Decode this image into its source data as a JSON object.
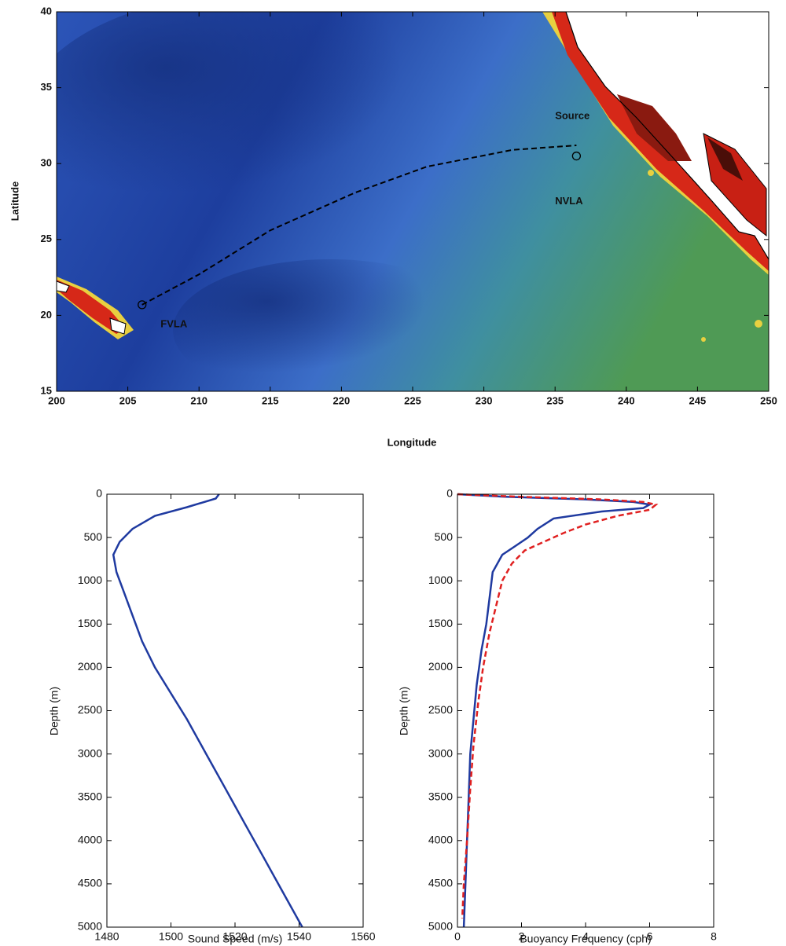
{
  "chart_data": [
    {
      "type": "map",
      "xlabel": "Longitude",
      "ylabel": "Latitude",
      "xlim": [
        200,
        250
      ],
      "ylim": [
        15,
        40
      ],
      "xticks": [
        200,
        205,
        210,
        215,
        220,
        225,
        230,
        235,
        240,
        245,
        250
      ],
      "yticks": [
        15,
        20,
        25,
        30,
        35,
        40
      ],
      "series": [
        {
          "x": [
            206,
            210,
            215,
            221,
            226,
            232,
            236.5
          ],
          "y": [
            20.7,
            22.7,
            25.6,
            28.1,
            29.8,
            30.9,
            31.2
          ],
          "color": "#000000",
          "dash": true
        }
      ],
      "markers": {
        "x": [
          206,
          236.5
        ],
        "y": [
          20.7,
          30.5
        ]
      },
      "annotations": [
        {
          "text": "Source",
          "x": 235,
          "y": 33.1
        },
        {
          "text": "NVLA",
          "x": 235,
          "y": 27.5
        },
        {
          "text": "FVLA",
          "x": 207.3,
          "y": 19.4
        }
      ]
    },
    {
      "type": "profile",
      "xlabel": "Sound Speed (m/s)",
      "ylabel": "Depth (m)",
      "xlim": [
        1480,
        1560
      ],
      "ylim": [
        0,
        5000
      ],
      "y_reversed": true,
      "xticks": [
        1480,
        1500,
        1520,
        1540,
        1560
      ],
      "yticks": [
        0,
        500,
        1000,
        1500,
        2000,
        2500,
        3000,
        3500,
        4000,
        4500,
        5000
      ],
      "series": [
        {
          "color": "#1f3aa0",
          "dash": false,
          "x": [
            1515,
            1514,
            1505,
            1495,
            1488,
            1484,
            1482,
            1483,
            1485,
            1488,
            1491,
            1495,
            1500,
            1505,
            1511,
            1517,
            1523,
            1529,
            1535,
            1541
          ],
          "y": [
            0,
            50,
            150,
            250,
            400,
            550,
            700,
            900,
            1100,
            1400,
            1700,
            2000,
            2300,
            2600,
            3000,
            3400,
            3800,
            4200,
            4600,
            5000
          ]
        }
      ]
    },
    {
      "type": "profile",
      "xlabel": "Buoyancy Frequency (cph)",
      "ylabel": "Depth (m)",
      "xlim": [
        0,
        8
      ],
      "ylim": [
        0,
        5000
      ],
      "y_reversed": true,
      "xticks": [
        0,
        2,
        4,
        6,
        8
      ],
      "yticks": [
        0,
        500,
        1000,
        1500,
        2000,
        2500,
        3000,
        3500,
        4000,
        4500,
        5000
      ],
      "series": [
        {
          "color": "#1f3aa0",
          "dash": false,
          "x": [
            0,
            1.5,
            4,
            5.5,
            6,
            5.8,
            4.5,
            3,
            2.5,
            2.2,
            1.8,
            1.4,
            1.1,
            1.0,
            0.9,
            0.75,
            0.6,
            0.5,
            0.4,
            0.35,
            0.3,
            0.25,
            0.2
          ],
          "y": [
            0,
            30,
            60,
            90,
            120,
            160,
            200,
            280,
            400,
            500,
            600,
            700,
            900,
            1200,
            1500,
            1800,
            2200,
            2600,
            3000,
            3500,
            4000,
            4500,
            5000
          ]
        },
        {
          "color": "#e02020",
          "dash": true,
          "x": [
            0,
            2,
            4.5,
            5.8,
            6.2,
            6,
            5,
            4,
            3.3,
            2.7,
            2.1,
            1.7,
            1.4,
            1.2,
            1.0,
            0.8,
            0.65,
            0.5,
            0.4,
            0.3,
            0.2,
            0.15
          ],
          "y": [
            0,
            30,
            60,
            90,
            120,
            180,
            250,
            350,
            450,
            550,
            650,
            800,
            1000,
            1300,
            1600,
            2000,
            2400,
            2900,
            3400,
            4000,
            4500,
            4900
          ]
        }
      ]
    }
  ]
}
